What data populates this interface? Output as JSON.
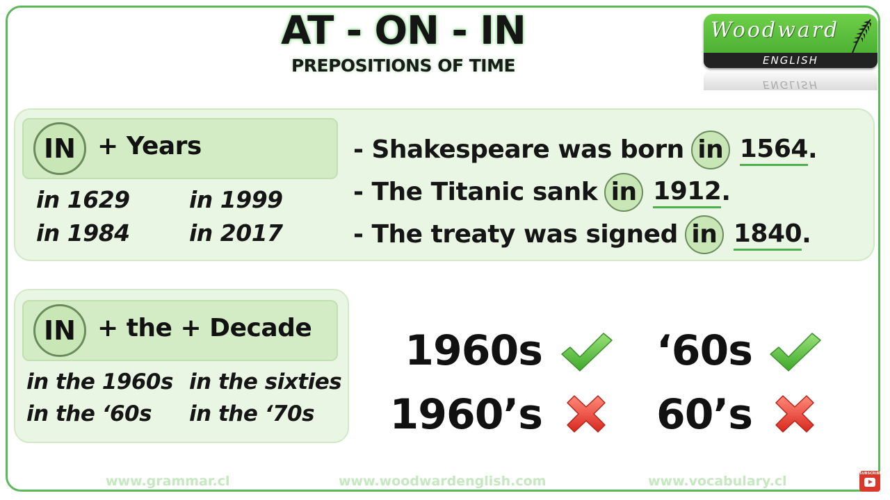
{
  "header": {
    "title": "AT - ON - IN",
    "subtitle": "PREPOSITIONS OF TIME"
  },
  "logo": {
    "name": "Woodward",
    "sub": "ENGLISH",
    "colors": {
      "primary": "#4fb837",
      "band": "#222222"
    }
  },
  "years_section": {
    "badge": "IN",
    "rule": "+ Years",
    "examples": [
      "in 1629",
      "in 1999",
      "in 1984",
      "in 2017"
    ],
    "sentences": [
      {
        "prefix": "- Shakespeare was born",
        "prep": "in",
        "year": "1564",
        "end": "."
      },
      {
        "prefix": "- The Titanic sank",
        "prep": "in",
        "year": "1912",
        "end": "."
      },
      {
        "prefix": "- The treaty was signed",
        "prep": "in",
        "year": "1840",
        "end": "."
      }
    ]
  },
  "decade_section": {
    "badge": "IN",
    "rule": "+ the + Decade",
    "examples": [
      "in the 1960s",
      "in the sixties",
      "in the ‘60s",
      "in the ‘70s"
    ],
    "forms": [
      {
        "text": "1960s",
        "status": "correct",
        "icon": "check-icon"
      },
      {
        "text": "‘60s",
        "status": "correct",
        "icon": "check-icon"
      },
      {
        "text": "1960’s",
        "status": "incorrect",
        "icon": "cross-icon"
      },
      {
        "text": "60’s",
        "status": "incorrect",
        "icon": "cross-icon"
      }
    ]
  },
  "footer": {
    "links": [
      "www.grammar.cl",
      "www.woodwardenglish.com",
      "www.vocabulary.cl"
    ],
    "subscribe": "SUBSCRIBE"
  },
  "colors": {
    "frame": "#5cb85c",
    "panel": "#eaf6e4",
    "check": "#5cc437",
    "cross": "#e8403a"
  }
}
